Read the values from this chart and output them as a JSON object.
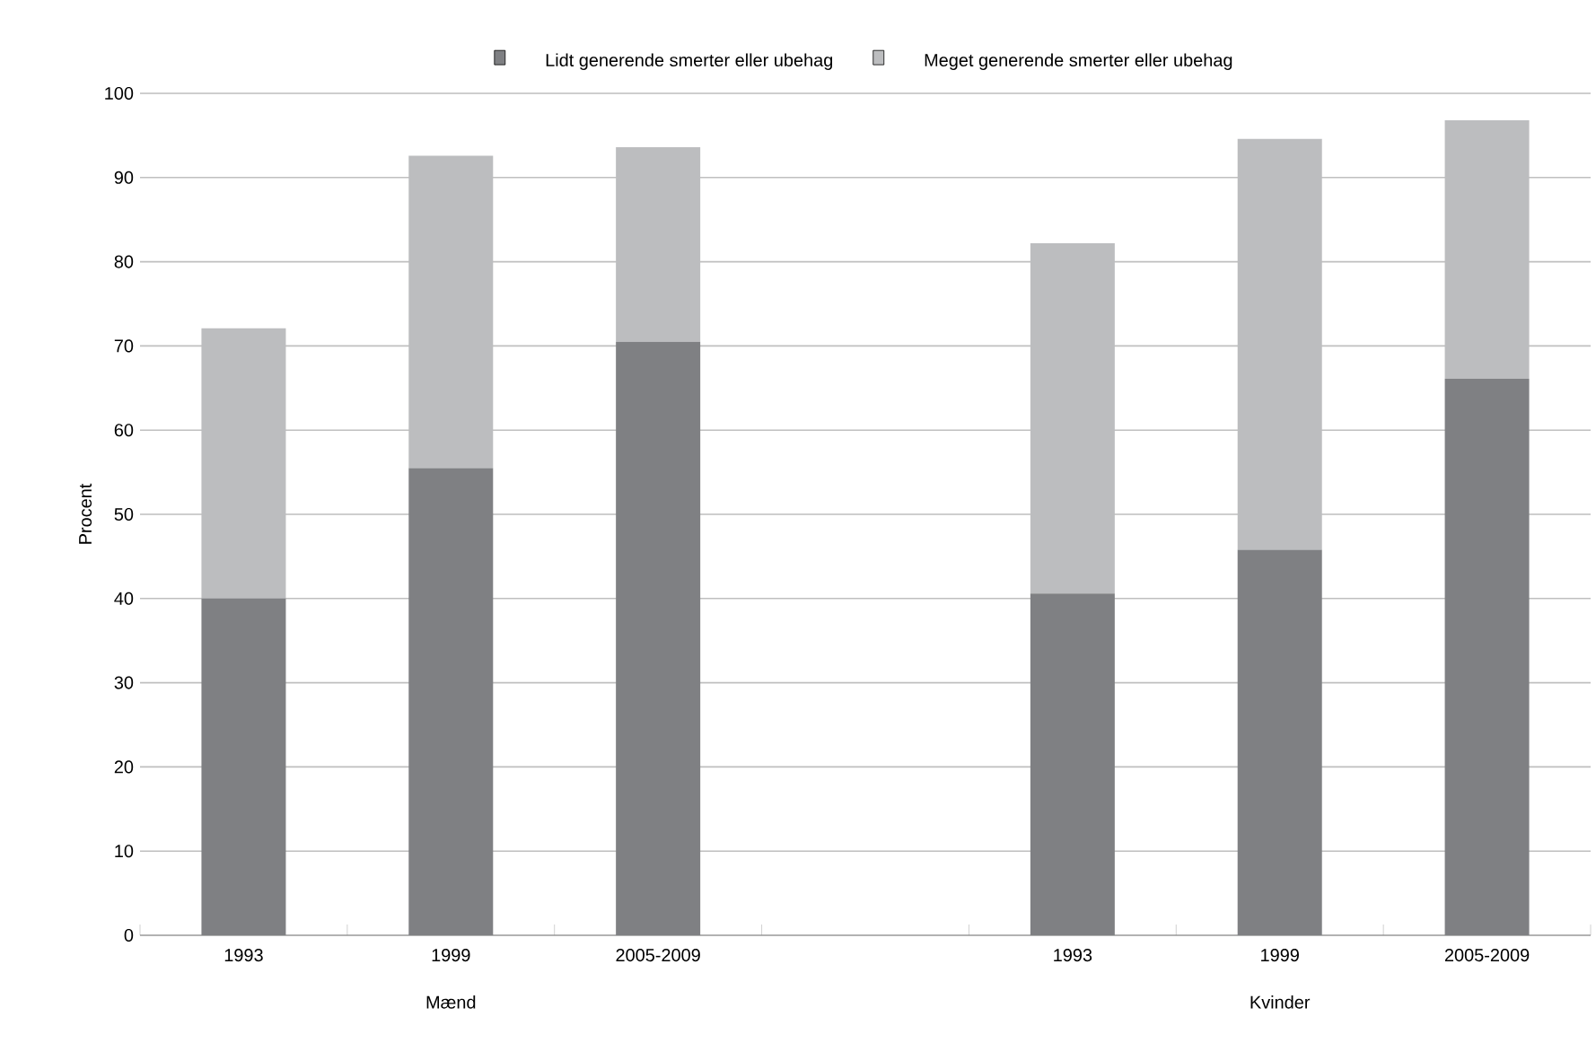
{
  "chart_data": {
    "type": "bar",
    "stacked": true,
    "ylabel": "Procent",
    "categories": [
      "1993",
      "1999",
      "2005-2009",
      null,
      "1993",
      "1999",
      "2005-2009"
    ],
    "series": [
      {
        "name": "Lidt generende smerter eller ubehag",
        "color": "#7f8083",
        "values": [
          40,
          55.5,
          70.5,
          null,
          40.6,
          45.8,
          66.1
        ]
      },
      {
        "name": "Meget generende smerter eller ubehag",
        "color": "#bcbdbf",
        "values": [
          32.1,
          37.1,
          23.1,
          null,
          41.6,
          48.8,
          30.7
        ]
      }
    ],
    "annotations": [
      "Mænd",
      "Kvinder"
    ],
    "ylim": [
      0,
      100
    ],
    "yticks": [
      0,
      10,
      20,
      30,
      40,
      50,
      60,
      70,
      80,
      90,
      100
    ],
    "grid": "y",
    "legend": "top"
  }
}
